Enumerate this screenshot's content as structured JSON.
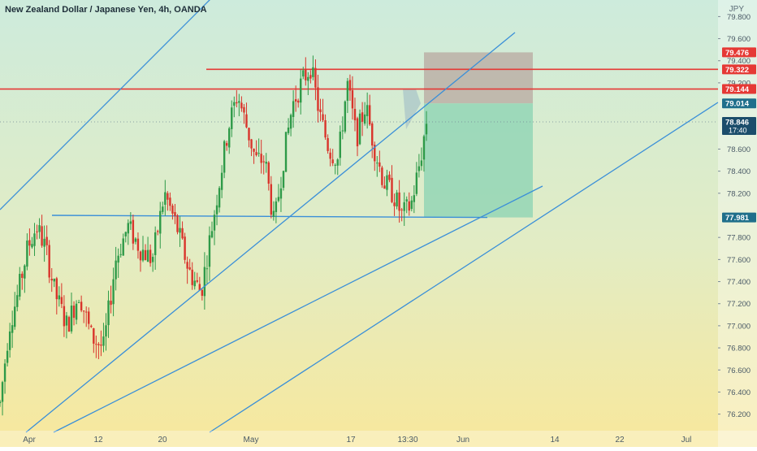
{
  "header": {
    "title": "New Zealand Dollar / Japanese Yen, 4h, OANDA",
    "currency": "JPY"
  },
  "colors": {
    "bg_top": "#cdebdc",
    "bg_bottom": "#f7e79a",
    "candle_up": "#2e9a48",
    "candle_down": "#d9342b",
    "trendline": "#3a8fd8",
    "resistance": "#e53935",
    "stop_zone": "#b8a8a0",
    "target_zone": "#8fd4b4",
    "tag_blue": "#1f6f8b",
    "tag_red": "#e53935",
    "tag_dark": "#1b4d6b"
  },
  "chart_data": {
    "type": "candlestick",
    "symbol": "NZDJPY",
    "timeframe": "4h",
    "broker": "OANDA",
    "x_ticks": [
      "Apr",
      "12",
      "20",
      "May",
      "17",
      "13:30",
      "Jun",
      "14",
      "22",
      "Jul"
    ],
    "y_ticks": [
      "79.800",
      "79.600",
      "79.400",
      "79.200",
      "78.600",
      "78.400",
      "78.200",
      "77.800",
      "77.600",
      "77.400",
      "77.200",
      "77.000",
      "76.800",
      "76.600",
      "76.400",
      "76.200"
    ],
    "ylim": [
      76.05,
      79.95
    ],
    "price_tags": [
      {
        "value": "79.476",
        "kind": "red"
      },
      {
        "value": "79.322",
        "kind": "red"
      },
      {
        "value": "79.144",
        "kind": "red"
      },
      {
        "value": "79.014",
        "kind": "blue"
      },
      {
        "value": "78.846",
        "kind": "dark",
        "sub": "17:40"
      },
      {
        "value": "77.981",
        "kind": "blue"
      }
    ],
    "resistance_levels": [
      79.322,
      79.144
    ],
    "support_level": 77.981,
    "position": {
      "type": "short",
      "entry": 79.014,
      "stop": 79.476,
      "target": 77.981
    },
    "price_path": [
      {
        "t": 0,
        "p": 76.3
      },
      {
        "t": 0.015,
        "p": 77.0
      },
      {
        "t": 0.03,
        "p": 77.3
      },
      {
        "t": 0.045,
        "p": 77.7
      },
      {
        "t": 0.06,
        "p": 77.9
      },
      {
        "t": 0.075,
        "p": 77.7
      },
      {
        "t": 0.09,
        "p": 77.3
      },
      {
        "t": 0.11,
        "p": 77.0
      },
      {
        "t": 0.13,
        "p": 77.3
      },
      {
        "t": 0.15,
        "p": 76.9
      },
      {
        "t": 0.17,
        "p": 76.8
      },
      {
        "t": 0.19,
        "p": 77.6
      },
      {
        "t": 0.21,
        "p": 77.9
      },
      {
        "t": 0.23,
        "p": 77.7
      },
      {
        "t": 0.25,
        "p": 77.6
      },
      {
        "t": 0.27,
        "p": 78.2
      },
      {
        "t": 0.29,
        "p": 77.9
      },
      {
        "t": 0.31,
        "p": 77.5
      },
      {
        "t": 0.33,
        "p": 77.3
      },
      {
        "t": 0.345,
        "p": 77.8
      },
      {
        "t": 0.36,
        "p": 78.3
      },
      {
        "t": 0.375,
        "p": 78.8
      },
      {
        "t": 0.39,
        "p": 79.1
      },
      {
        "t": 0.405,
        "p": 78.8
      },
      {
        "t": 0.42,
        "p": 78.5
      },
      {
        "t": 0.435,
        "p": 78.5
      },
      {
        "t": 0.45,
        "p": 77.9
      },
      {
        "t": 0.465,
        "p": 78.5
      },
      {
        "t": 0.48,
        "p": 79.0
      },
      {
        "t": 0.495,
        "p": 79.2
      },
      {
        "t": 0.51,
        "p": 79.35
      },
      {
        "t": 0.525,
        "p": 78.9
      },
      {
        "t": 0.54,
        "p": 78.6
      },
      {
        "t": 0.555,
        "p": 78.5
      },
      {
        "t": 0.57,
        "p": 79.2
      },
      {
        "t": 0.585,
        "p": 78.7
      },
      {
        "t": 0.6,
        "p": 79.0
      },
      {
        "t": 0.615,
        "p": 78.6
      },
      {
        "t": 0.63,
        "p": 78.3
      },
      {
        "t": 0.645,
        "p": 78.2
      },
      {
        "t": 0.66,
        "p": 78.0
      },
      {
        "t": 0.675,
        "p": 78.1
      },
      {
        "t": 0.69,
        "p": 78.5
      },
      {
        "t": 0.7,
        "p": 78.85
      }
    ]
  }
}
